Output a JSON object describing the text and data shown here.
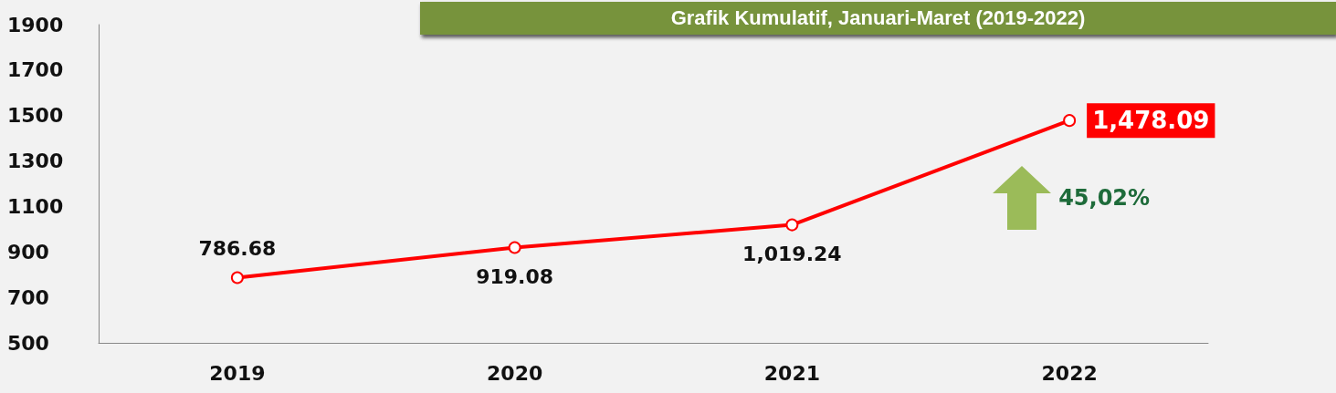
{
  "chart_data": {
    "type": "line",
    "title": "Grafik Kumulatif, Januari-Maret (2019-2022)",
    "categories": [
      "2019",
      "2020",
      "2021",
      "2022"
    ],
    "series": [
      {
        "color": "#ff0000",
        "values": [
          786.68,
          919.08,
          1019.24,
          1478.09
        ],
        "value_labels": [
          "786.68",
          "919.08",
          "1,019.24",
          "1,478.09"
        ]
      }
    ],
    "ylim": [
      500,
      1900
    ],
    "yticks": [
      500,
      700,
      900,
      1100,
      1300,
      1500,
      1700,
      1900
    ],
    "grid": false,
    "marker": "circle",
    "line_style": "solid",
    "annotations": [
      "45,02%"
    ]
  }
}
